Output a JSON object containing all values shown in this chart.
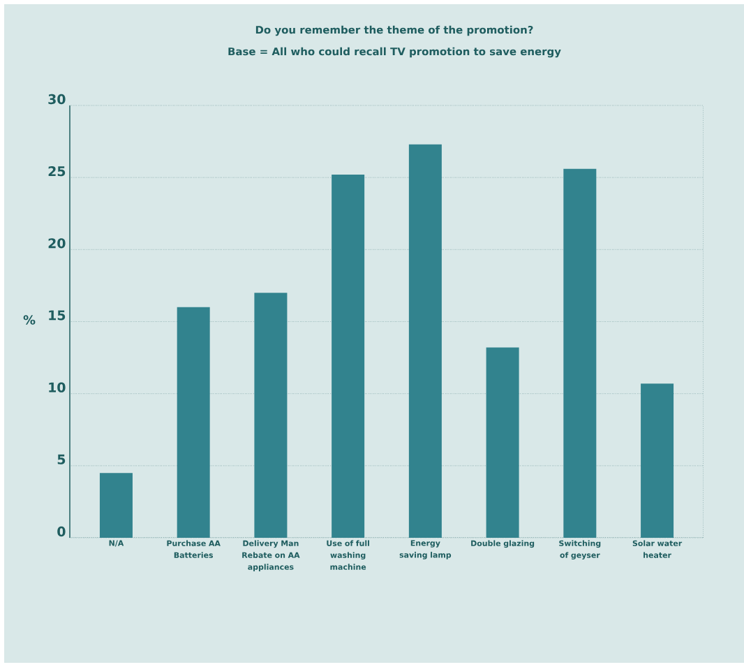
{
  "chart_data": {
    "type": "bar",
    "title": "Do you remember the theme of the promotion?",
    "subtitle": "Base = All who could recall TV promotion to save energy",
    "ylabel": "%",
    "categories": [
      "N/A",
      "Purchase AA Batteries",
      "Delivery Man Rebate on AA appliances",
      "Use of full washing machine",
      "Energy saving lamp",
      "Double glazing",
      "Switching of geyser",
      "Solar water heater"
    ],
    "values": [
      4.5,
      16,
      17,
      25.2,
      27.3,
      13.2,
      25.6,
      10.7
    ],
    "color": "#32838e",
    "ylim": [
      0,
      30
    ],
    "yticks": [
      0,
      5,
      10,
      15,
      20,
      25,
      30
    ],
    "grid": "y"
  }
}
